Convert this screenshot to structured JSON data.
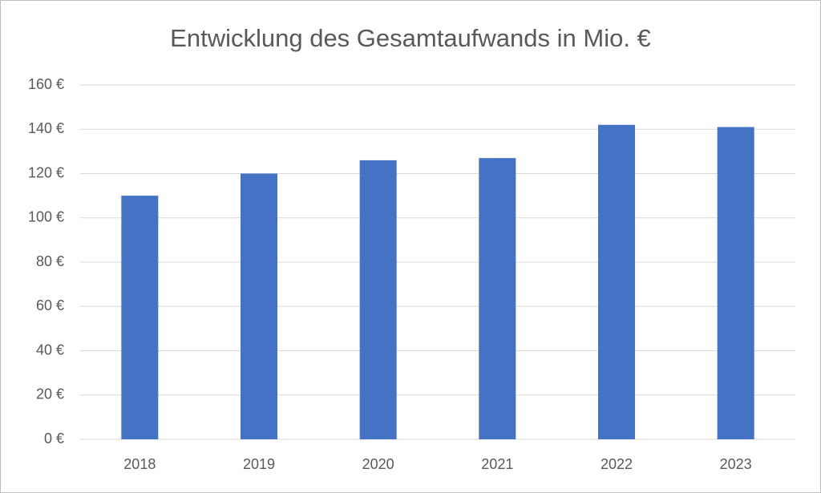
{
  "chart_data": {
    "type": "bar",
    "title": "Entwicklung des Gesamtaufwands in Mio. €",
    "categories": [
      "2018",
      "2019",
      "2020",
      "2021",
      "2022",
      "2023"
    ],
    "values": [
      110,
      120,
      126,
      127,
      142,
      141
    ],
    "color": "#4472c4",
    "ylim": [
      0,
      160
    ],
    "yticks": [
      {
        "value": 0,
        "label": "0 €"
      },
      {
        "value": 20,
        "label": "20 €"
      },
      {
        "value": 40,
        "label": "40 €"
      },
      {
        "value": 60,
        "label": "60 €"
      },
      {
        "value": 80,
        "label": "80 €"
      },
      {
        "value": 100,
        "label": "100 €"
      },
      {
        "value": 120,
        "label": "120 €"
      },
      {
        "value": 140,
        "label": "140 €"
      },
      {
        "value": 160,
        "label": "160 €"
      }
    ],
    "grid": true
  }
}
